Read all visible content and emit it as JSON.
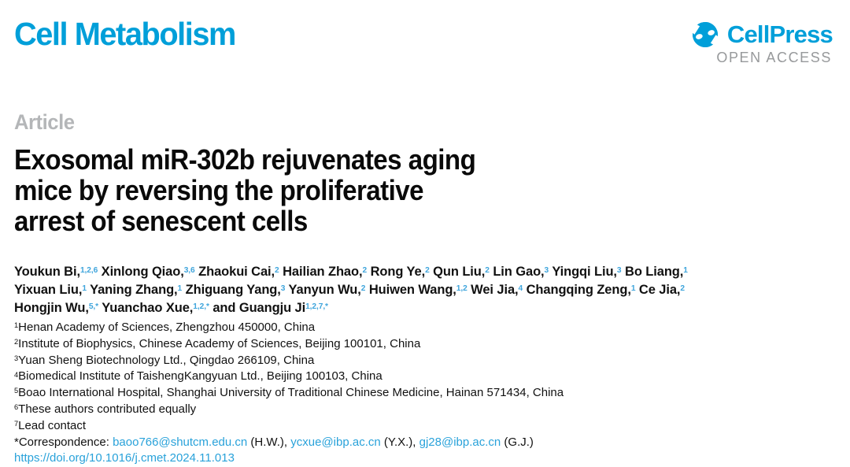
{
  "masthead": {
    "journal": "Cell Metabolism",
    "publisher": "CellPress",
    "open_access": "OPEN ACCESS"
  },
  "article": {
    "label": "Article",
    "title": "Exosomal miR-302b rejuvenates aging mice by reversing the proliferative arrest of senescent cells",
    "title_lines": [
      "Exosomal miR-302b rejuvenates aging",
      "mice by reversing the proliferative",
      "arrest of senescent cells"
    ]
  },
  "author_lines": [
    [
      {
        "name": "Youkun Bi,",
        "sup": "1,2,6"
      },
      {
        "name": "Xinlong Qiao,",
        "sup": "3,6"
      },
      {
        "name": "Zhaokui Cai,",
        "sup": "2"
      },
      {
        "name": "Hailian Zhao,",
        "sup": "2"
      },
      {
        "name": "Rong Ye,",
        "sup": "2"
      },
      {
        "name": "Qun Liu,",
        "sup": "2"
      },
      {
        "name": "Lin Gao,",
        "sup": "3"
      },
      {
        "name": "Yingqi Liu,",
        "sup": "3"
      },
      {
        "name": "Bo Liang,",
        "sup": "1"
      }
    ],
    [
      {
        "name": "Yixuan Liu,",
        "sup": "1"
      },
      {
        "name": "Yaning Zhang,",
        "sup": "1"
      },
      {
        "name": "Zhiguang Yang,",
        "sup": "3"
      },
      {
        "name": "Yanyun Wu,",
        "sup": "2"
      },
      {
        "name": "Huiwen Wang,",
        "sup": "1,2"
      },
      {
        "name": "Wei Jia,",
        "sup": "4"
      },
      {
        "name": "Changqing Zeng,",
        "sup": "1"
      },
      {
        "name": "Ce Jia,",
        "sup": "2"
      }
    ],
    [
      {
        "name": "Hongjin Wu,",
        "sup": "5,*"
      },
      {
        "name": "Yuanchao Xue,",
        "sup": "1,2,*"
      },
      {
        "name": "and Guangju Ji",
        "sup": "1,2,7,*"
      }
    ]
  ],
  "affiliations": [
    {
      "sup": "1",
      "text": "Henan Academy of Sciences, Zhengzhou 450000, China"
    },
    {
      "sup": "2",
      "text": "Institute of Biophysics, Chinese Academy of Sciences, Beijing 100101, China"
    },
    {
      "sup": "3",
      "text": "Yuan Sheng Biotechnology Ltd., Qingdao 266109, China"
    },
    {
      "sup": "4",
      "text": "Biomedical Institute of TaishengKangyuan Ltd., Beijing 100103, China"
    },
    {
      "sup": "5",
      "text": "Boao International Hospital, Shanghai University of Traditional Chinese Medicine, Hainan 571434, China"
    },
    {
      "sup": "6",
      "text": "These authors contributed equally"
    },
    {
      "sup": "7",
      "text": "Lead contact"
    }
  ],
  "correspondence": {
    "label": "*Correspondence: ",
    "contacts": [
      {
        "email": "baoo766@shutcm.edu.cn",
        "after": " (H.W.), "
      },
      {
        "email": "ycxue@ibp.ac.cn",
        "after": " (Y.X.), "
      },
      {
        "email": "gj28@ibp.ac.cn",
        "after": " (G.J.)"
      }
    ]
  },
  "doi": "https://doi.org/10.1016/j.cmet.2024.11.013",
  "colors": {
    "brand_blue": "#009fd9",
    "superscript_blue": "#3fa5dc",
    "link_blue": "#29a2da",
    "article_label_gray": "#b4b6b8",
    "open_access_gray": "#97999b"
  }
}
